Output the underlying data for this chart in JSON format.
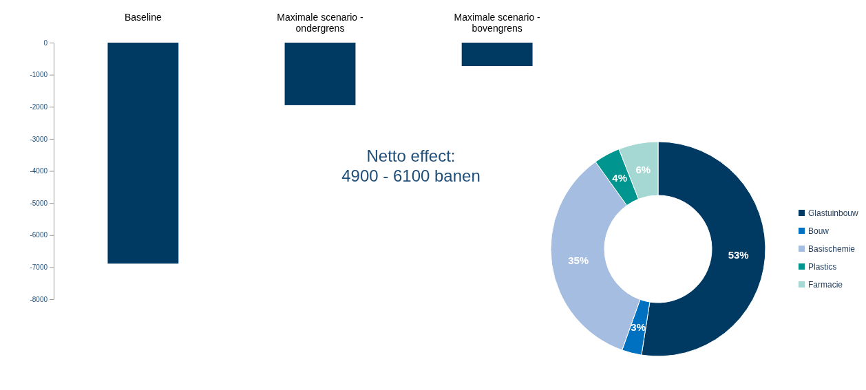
{
  "chart_data": [
    {
      "type": "bar",
      "categories": [
        "Baseline",
        "Maximale scenario - ondergrens",
        "Maximale scenario - bovengrens"
      ],
      "values": [
        -6890,
        -1950,
        -730
      ],
      "color": "#003a63",
      "ylim": [
        -8000,
        0
      ],
      "yticks": [
        0,
        -1000,
        -2000,
        -3000,
        -4000,
        -5000,
        -6000,
        -7000,
        -8000
      ],
      "grid": false,
      "annotations": [
        "Netto effect:\n4900 - 6100 banen"
      ]
    },
    {
      "type": "donut",
      "categories": [
        "Glastuinbouw",
        "Bouw",
        "Basischemie",
        "Plastics",
        "Farmacie"
      ],
      "values": [
        53,
        3,
        35,
        4,
        6
      ],
      "colors": [
        "#003a63",
        "#0070c0",
        "#a4bde0",
        "#00968f",
        "#a5d8d3"
      ],
      "value_labels": [
        "53%",
        "3%",
        "35%",
        "4%",
        "6%"
      ],
      "legend": "right"
    }
  ]
}
